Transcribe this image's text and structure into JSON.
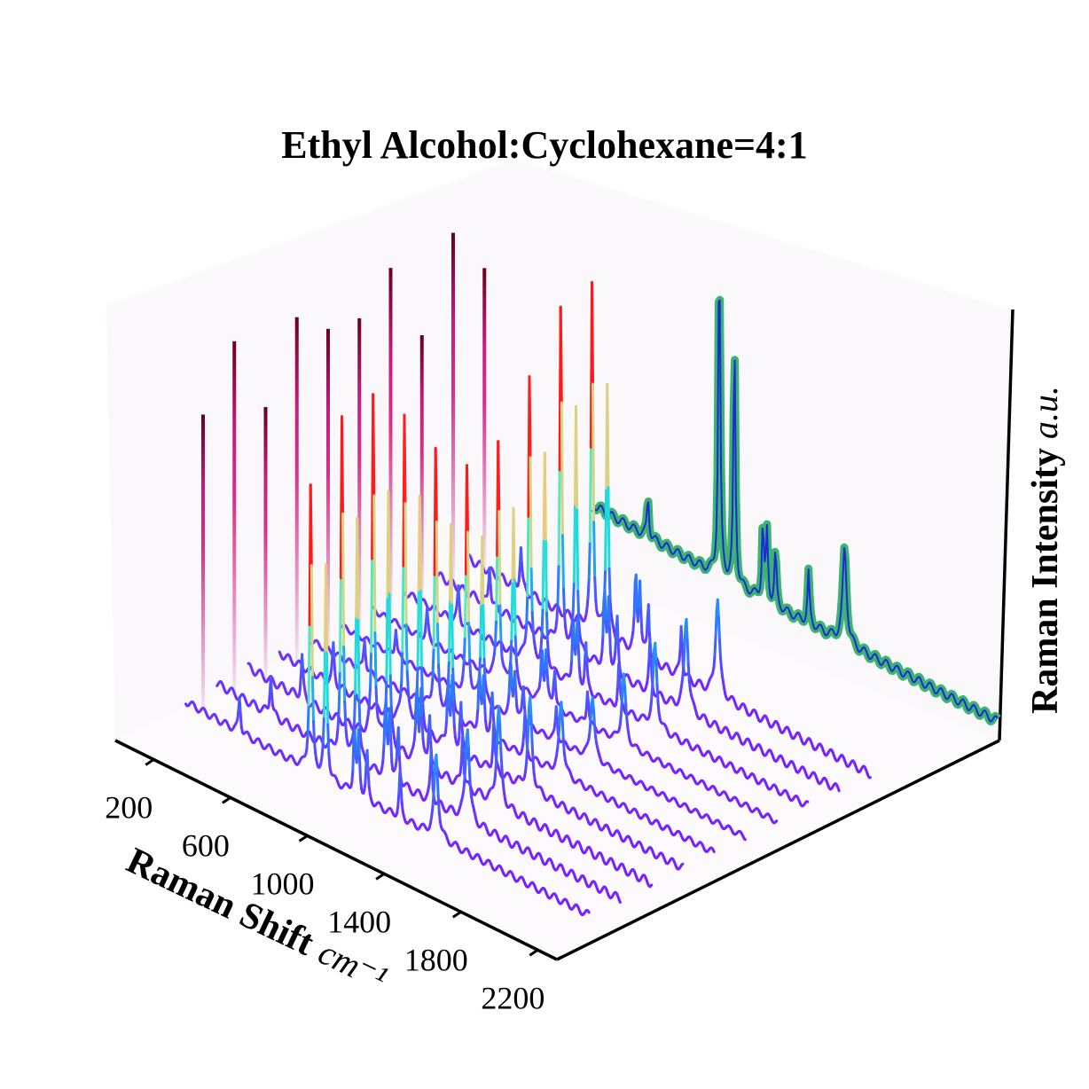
{
  "chart_data": {
    "type": "line",
    "subtype": "3d-waterfall",
    "title": "Ethyl Alcohol:Cyclohexane=4:1",
    "xlabel": "Raman Shift",
    "xlabel_unit": "cm⁻¹",
    "zlabel": "Raman Intensity",
    "zlabel_unit": "a.u.",
    "x_ticks": [
      "200",
      "600",
      "1000",
      "1400",
      "1800",
      "2200"
    ],
    "xlim": [
      0,
      2300
    ],
    "grid": false,
    "pane_color": "#fbf8fb",
    "colors": {
      "spectra_low": "#7b1fff",
      "spectra_high": "#ff1a1a",
      "back_fill": "#3cb371",
      "back_line": "#1a2bd6",
      "side_high": "#67001f",
      "side_mid": "#d6318a"
    },
    "spectra_count": 10,
    "peaks": [
      {
        "shift": 430,
        "intensity": 0.12
      },
      {
        "shift": 801,
        "intensity": 1.0
      },
      {
        "shift": 880,
        "intensity": 0.72
      },
      {
        "shift": 1028,
        "intensity": 0.22
      },
      {
        "shift": 1050,
        "intensity": 0.2
      },
      {
        "shift": 1094,
        "intensity": 0.16
      },
      {
        "shift": 1266,
        "intensity": 0.15
      },
      {
        "shift": 1454,
        "intensity": 0.28
      }
    ]
  }
}
